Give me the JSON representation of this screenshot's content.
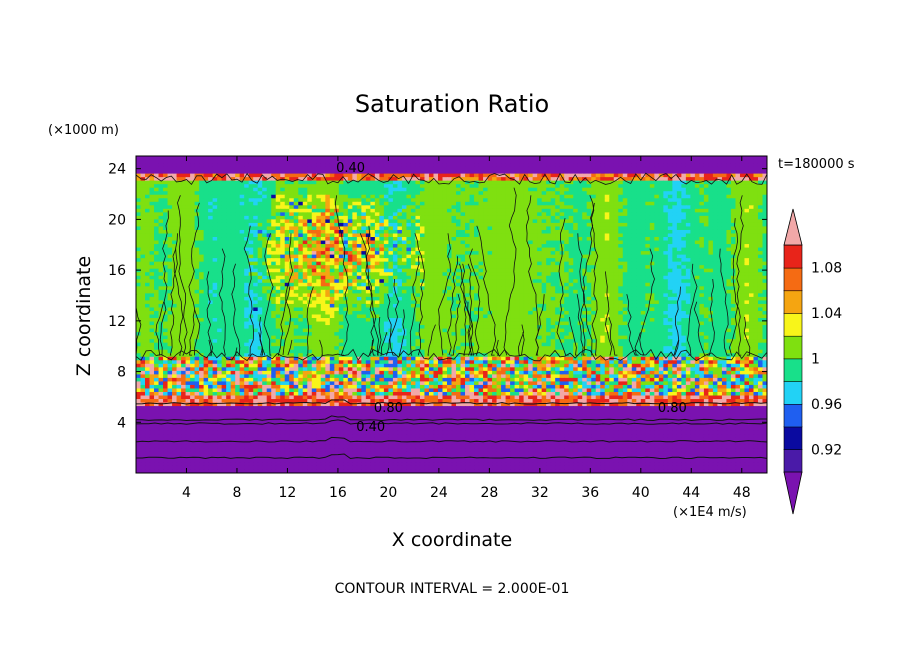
{
  "chart_data": {
    "type": "heatmap",
    "title": "Saturation Ratio",
    "xlabel": "X coordinate",
    "ylabel": "Z coordinate",
    "x_unit": "(×1E4 m/s)",
    "y_unit": "(×1000 m)",
    "time_label": "t=180000 s",
    "footer": "CONTOUR INTERVAL = 2.000E-01",
    "xlim": [
      0,
      50
    ],
    "ylim": [
      0,
      25
    ],
    "x_ticks": [
      "4",
      "8",
      "12",
      "16",
      "20",
      "24",
      "28",
      "32",
      "36",
      "40",
      "44",
      "48"
    ],
    "y_ticks": [
      "4",
      "8",
      "12",
      "16",
      "20",
      "24"
    ],
    "colorbar": {
      "levels": [
        0.9,
        0.92,
        0.94,
        0.96,
        0.98,
        1.0,
        1.02,
        1.04,
        1.06,
        1.08,
        1.1
      ],
      "labels": [
        "0.92",
        "0.96",
        "1",
        "1.04",
        "1.08"
      ],
      "colors": [
        "#4a1aa8",
        "#0a0aa0",
        "#1f5ff0",
        "#22d2f5",
        "#18e08a",
        "#7fe010",
        "#f8f51a",
        "#f5a511",
        "#f56b13",
        "#e8241a"
      ],
      "under_color": "#7a12b0",
      "over_color": "#f2a8a8",
      "extend": "both"
    },
    "contour_labels": [
      "0.40",
      "0.80",
      "0.80",
      "0.40"
    ],
    "layers": [
      {
        "z_from": 0,
        "z_to": 5.5,
        "value": "<0.9"
      },
      {
        "z_from": 5.5,
        "z_to": 9.5,
        "value": "mixed 0.9–1.1"
      },
      {
        "z_from": 9.5,
        "z_to": 23.5,
        "value": "≈0.98–1.02 (pockets up to >1.1 near x=12–22)"
      },
      {
        "z_from": 23.5,
        "z_to": 25,
        "value": "<0.9"
      }
    ]
  }
}
